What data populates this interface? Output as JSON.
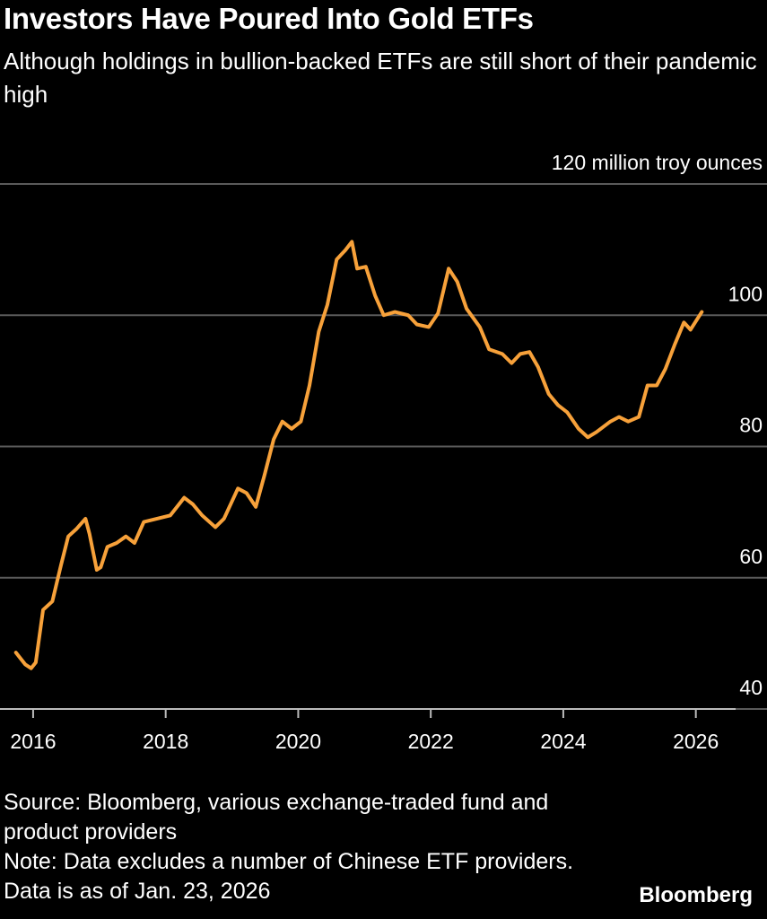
{
  "chart_data": {
    "type": "line",
    "title": "Investors Have Poured Into Gold ETFs",
    "subtitle": "Although holdings in bullion-backed ETFs are still short of their pandemic high",
    "source": "Source: Bloomberg, various exchange-traded fund and product providers",
    "note": "Note: Data excludes a number of Chinese ETF providers. Data is as of Jan. 23, 2026",
    "brand": "Bloomberg",
    "color": "#f7a13a",
    "grid": true,
    "x": [
      2015.74,
      2015.88,
      2015.97,
      2016.04,
      2016.15,
      2016.29,
      2016.42,
      2016.53,
      2016.65,
      2016.79,
      2016.85,
      2016.96,
      2017.02,
      2017.12,
      2017.26,
      2017.4,
      2017.53,
      2017.67,
      2017.87,
      2018.07,
      2018.28,
      2018.41,
      2018.55,
      2018.75,
      2018.88,
      2019.09,
      2019.22,
      2019.36,
      2019.49,
      2019.63,
      2019.76,
      2019.9,
      2020.04,
      2020.17,
      2020.31,
      2020.44,
      2020.58,
      2020.71,
      2020.81,
      2020.89,
      2021.02,
      2021.16,
      2021.29,
      2021.46,
      2021.66,
      2021.79,
      2021.97,
      2022.11,
      2022.27,
      2022.4,
      2022.54,
      2022.74,
      2022.88,
      2023.08,
      2023.22,
      2023.35,
      2023.49,
      2023.62,
      2023.78,
      2023.92,
      2024.06,
      2024.23,
      2024.37,
      2024.5,
      2024.71,
      2024.84,
      2024.98,
      2025.14,
      2025.27,
      2025.41,
      2025.54,
      2025.68,
      2025.82,
      2025.92,
      2026.09
    ],
    "values": [
      48.6,
      46.8,
      46.2,
      47.1,
      55.1,
      56.4,
      61.9,
      66.3,
      67.4,
      69.0,
      66.7,
      61.2,
      61.6,
      64.7,
      65.3,
      66.3,
      65.3,
      68.5,
      69.0,
      69.5,
      72.2,
      71.2,
      69.5,
      67.7,
      69.0,
      73.6,
      72.9,
      70.8,
      75.6,
      81.1,
      83.8,
      82.7,
      83.8,
      89.3,
      97.5,
      101.6,
      108.5,
      109.9,
      111.2,
      107.1,
      107.4,
      103.0,
      100.0,
      100.5,
      100.0,
      98.6,
      98.2,
      100.3,
      107.1,
      105.1,
      101.0,
      98.2,
      94.8,
      94.1,
      92.7,
      94.1,
      94.4,
      92.1,
      88.0,
      86.3,
      85.2,
      82.7,
      81.4,
      82.2,
      83.8,
      84.5,
      83.8,
      84.5,
      89.3,
      89.3,
      91.8,
      95.5,
      98.9,
      97.8,
      100.5
    ],
    "xlim": [
      2015.5,
      2026.6
    ],
    "xticks": [
      2016,
      2018,
      2020,
      2022,
      2024,
      2026
    ],
    "ylim": [
      40,
      120
    ],
    "yticks": [
      40,
      60,
      80,
      100,
      {
        "value": 120,
        "label": "120 million troy ounces"
      }
    ]
  }
}
